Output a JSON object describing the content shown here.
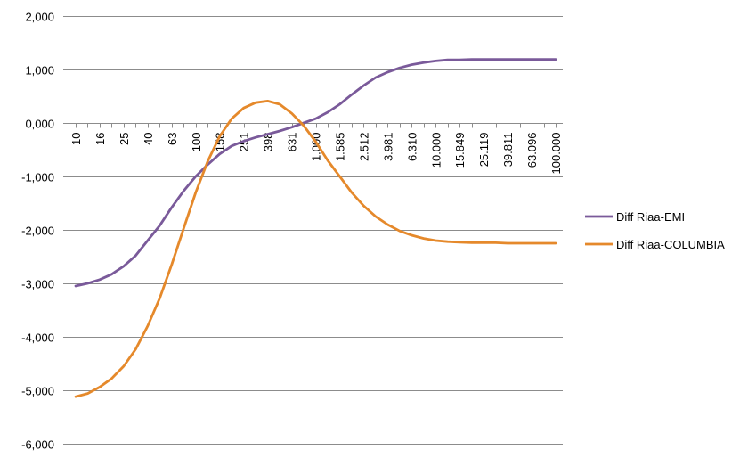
{
  "chart_data": {
    "type": "line",
    "title": "",
    "xlabel": "",
    "ylabel": "",
    "x_scale": "log",
    "ylim": [
      -6,
      2
    ],
    "y_ticks": [
      2,
      1,
      0,
      -1,
      -2,
      -3,
      -4,
      -5,
      -6
    ],
    "y_tick_labels": [
      "2,000",
      "1,000",
      "0,000",
      "-1,000",
      "-2,000",
      "-3,000",
      "-4,000",
      "-5,000",
      "-6,000"
    ],
    "grid": true,
    "legend_position": "right",
    "x_tick_labels": [
      "10",
      "16",
      "25",
      "40",
      "63",
      "100",
      "158",
      "251",
      "398",
      "631",
      "1.000",
      "1.585",
      "2.512",
      "3.981",
      "6.310",
      "10.000",
      "15.849",
      "25.119",
      "39.811",
      "63.096",
      "100.000"
    ],
    "x": [
      10,
      12.59,
      15.85,
      19.95,
      25.12,
      31.62,
      39.81,
      50.12,
      63.1,
      79.43,
      100,
      125.9,
      158.5,
      199.5,
      251.2,
      316.2,
      398.1,
      501.2,
      631,
      794.3,
      1000,
      1259,
      1585,
      1995,
      2512,
      3162,
      3981,
      5012,
      6310,
      7943,
      10000,
      12589,
      15849,
      19953,
      25119,
      31623,
      39811,
      50119,
      63096,
      79433,
      100000
    ],
    "series": [
      {
        "name": "Diff Riaa-EMI",
        "color": "#7a5a9a",
        "values": [
          -3.05,
          -3.0,
          -2.93,
          -2.83,
          -2.68,
          -2.48,
          -2.2,
          -1.92,
          -1.58,
          -1.27,
          -1.0,
          -0.78,
          -0.58,
          -0.43,
          -0.34,
          -0.27,
          -0.21,
          -0.15,
          -0.08,
          0.0,
          0.08,
          0.2,
          0.35,
          0.53,
          0.7,
          0.85,
          0.95,
          1.03,
          1.09,
          1.13,
          1.16,
          1.18,
          1.18,
          1.19,
          1.19,
          1.19,
          1.19,
          1.19,
          1.19,
          1.19,
          1.19
        ]
      },
      {
        "name": "Diff Riaa-COLUMBIA",
        "color": "#e5892b",
        "values": [
          -5.12,
          -5.06,
          -4.94,
          -4.78,
          -4.55,
          -4.23,
          -3.8,
          -3.28,
          -2.65,
          -1.97,
          -1.3,
          -0.72,
          -0.25,
          0.08,
          0.28,
          0.38,
          0.41,
          0.35,
          0.18,
          -0.05,
          -0.35,
          -0.7,
          -1.0,
          -1.3,
          -1.55,
          -1.75,
          -1.9,
          -2.02,
          -2.1,
          -2.16,
          -2.2,
          -2.22,
          -2.23,
          -2.24,
          -2.24,
          -2.24,
          -2.25,
          -2.25,
          -2.25,
          -2.25,
          -2.25
        ]
      }
    ]
  }
}
